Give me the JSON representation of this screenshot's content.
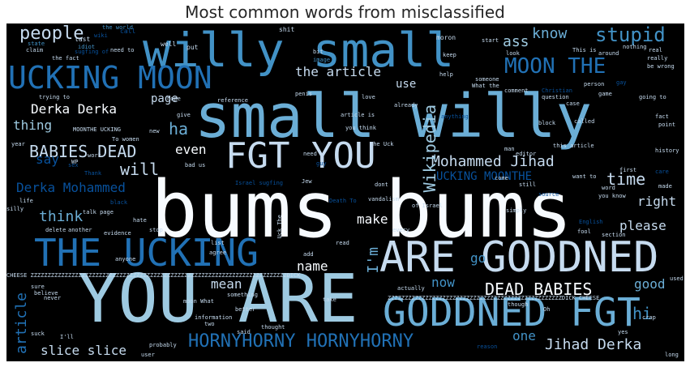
{
  "title": "Most common words from misclassified",
  "colors": {
    "white": "#f7fbff",
    "pale": "#c6dbef",
    "light": "#9ecae1",
    "sky": "#6baed6",
    "mid": "#4292c6",
    "blue": "#2171b5",
    "deep": "#08519c",
    "navy": "#08306b"
  },
  "words": {
    "bums_bums": "bums bums",
    "small_willy": "small willy",
    "you_are": "YOU ARE",
    "willy_small": "willy small",
    "are_goddned": "ARE GODDNED",
    "the_ucking": "THE UCKING",
    "goddned_fgt": "GODDNED FGT",
    "fgt_you": "FGT YOU",
    "ucking_moon": "UCKING MOON",
    "hornyhorny": "HORNYHORNY HORNYHORNY",
    "moon_the": "MOON THE",
    "babies_dead": "BABIES DEAD",
    "dead_babies": "DEAD BABIES",
    "stupid": "stupid",
    "people": "people",
    "mohammed_jihad": "Mohammed Jihad",
    "derka_derka": "Derka Derka",
    "derka_mohammed": "Derka Mohammed",
    "jihad_derka": "Jihad Derka",
    "slice_slice": "slice slice",
    "wikipedia": "Wikipedia",
    "know": "know",
    "ass": "ass",
    "the_article": "the article",
    "ha": "ha",
    "thing": "thing",
    "say": "say",
    "will": "will",
    "even": "even",
    "think": "think",
    "make": "make",
    "please": "please",
    "time": "time",
    "right": "right",
    "name": "name",
    "i_m": "I'm",
    "go": "go",
    "now": "now",
    "good": "good",
    "mean": "mean",
    "article": "article",
    "one": "one",
    "hi": "hi",
    "page": "page",
    "use": "use",
    "ucking_moonthe": "UCKING MOONTHE",
    "zz_row": "CHEESE ZZZZZZZZZZZZZZZZZZZZZZZZZZZZZZZZZZZZZZZZZZZZZZZZZZZZZZZZZZZZZZZZZZZZZZZZZZZDICK",
    "zz_row2": "ZZZZZZZZZZZZZZZZZZZZZZZZZZZZZZZZZZZZZZZZZZZZZZZZZZZDICK CHEESE"
  },
  "small": {
    "s1": "the world",
    "s2": "last",
    "s3": "call",
    "s4": "claim",
    "s5": "idiot",
    "s6": "the fact",
    "s7": "sugfing of",
    "s8": "need to",
    "s9": "well",
    "s10": "put",
    "s11": "shit",
    "s12": "bit",
    "s13": "image",
    "s14": "moron",
    "s15": "start",
    "s16": "keep",
    "s17": "look",
    "s18": "This is",
    "s19": "nothing",
    "s20": "really",
    "s21": "around",
    "s22": "be wrong",
    "s23": "help",
    "s24": "someone",
    "s25": "What the",
    "s26": "comment",
    "s27": "Christian",
    "s28": "person",
    "s29": "gay",
    "s30": "trying to",
    "s31": "hope",
    "s32": "reference",
    "s33": "love",
    "s34": "penis",
    "s35": "already",
    "s36": "anything",
    "s37": "question",
    "s38": "case",
    "s39": "game",
    "s40": "going to",
    "s41": "fact",
    "s42": "point",
    "s43": "article is",
    "s44": "you think",
    "s45": "this article",
    "s46": "called",
    "s47": "the Uck",
    "s48": "editor",
    "s49": "history",
    "s50": "MOONTHE UCKING",
    "s51": "To women",
    "s52": "new",
    "s53": "year",
    "s54": "give",
    "s55": "block",
    "s56": "man",
    "s57": "need",
    "s58": "guy",
    "s59": "first",
    "s60": "care",
    "s61": "want to",
    "s62": "word",
    "s63": "you know",
    "s64": "made",
    "s65": "Israel sugfing",
    "s66": "Jew",
    "s67": "bad us",
    "s68": "dont",
    "s69": "come",
    "s70": "still",
    "s71": "Death To",
    "s72": "vandalism",
    "s73": "of Israel",
    "s74": "life",
    "s75": "black",
    "s76": "silly",
    "s77": "hate",
    "s78": "talk page",
    "s79": "delete",
    "s80": "another",
    "s81": "evidence",
    "s82": "stop",
    "s83": "Uck The",
    "s84": "list",
    "s85": "agree",
    "s86": "read",
    "s87": "every",
    "s88": "simply",
    "s89": "English",
    "s90": "fool",
    "s91": "section",
    "s92": "add",
    "s93": "anyone",
    "s94": "sure",
    "s95": "believe",
    "s96": "never",
    "s97": "something",
    "s98": "moon What",
    "s99": "take",
    "s100": "better",
    "s101": "information",
    "s102": "two",
    "s103": "thought",
    "s104": "suck",
    "s105": "said",
    "s106": "probably",
    "s107": "user",
    "s108": "I'll",
    "s109": "long",
    "s110": "yes",
    "s111": "used",
    "s112": "actually",
    "s113": "though",
    "s114": "Oh",
    "s115": "reason",
    "s116": "crap",
    "s117": "wiki",
    "s118": "sex",
    "s119": "Thank",
    "s120": "work",
    "s121": "WP",
    "s122": "real",
    "s123": "source",
    "s124": "state"
  }
}
